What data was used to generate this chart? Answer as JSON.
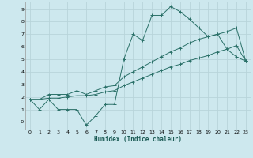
{
  "xlabel": "Humidex (Indice chaleur)",
  "background_color": "#cde8ee",
  "grid_color": "#b8d4da",
  "line_color": "#2a7068",
  "xlim": [
    -0.5,
    23.5
  ],
  "ylim": [
    -0.6,
    9.6
  ],
  "xticks": [
    0,
    1,
    2,
    3,
    4,
    5,
    6,
    7,
    8,
    9,
    10,
    11,
    12,
    13,
    14,
    15,
    16,
    17,
    18,
    19,
    20,
    21,
    22,
    23
  ],
  "yticks": [
    0,
    1,
    2,
    3,
    4,
    5,
    6,
    7,
    8,
    9
  ],
  "ytick_labels": [
    "-0",
    "1",
    "2",
    "3",
    "4",
    "5",
    "6",
    "7",
    "8",
    "9"
  ],
  "series": [
    [
      1.8,
      1.0,
      1.8,
      1.0,
      1.0,
      1.0,
      -0.25,
      0.5,
      1.4,
      1.4,
      5.0,
      7.0,
      6.5,
      8.5,
      8.5,
      9.2,
      8.8,
      8.2,
      7.5,
      6.8,
      7.0,
      5.8,
      5.2,
      4.85
    ],
    [
      1.8,
      1.8,
      2.2,
      2.2,
      2.2,
      2.5,
      2.2,
      2.5,
      2.8,
      2.9,
      3.6,
      4.0,
      4.4,
      4.8,
      5.2,
      5.6,
      5.9,
      6.3,
      6.6,
      6.8,
      7.0,
      7.2,
      7.5,
      4.85
    ],
    [
      1.8,
      1.8,
      1.9,
      1.9,
      2.0,
      2.1,
      2.1,
      2.2,
      2.4,
      2.5,
      2.9,
      3.2,
      3.5,
      3.8,
      4.1,
      4.4,
      4.6,
      4.9,
      5.1,
      5.3,
      5.6,
      5.8,
      6.1,
      4.85
    ]
  ]
}
